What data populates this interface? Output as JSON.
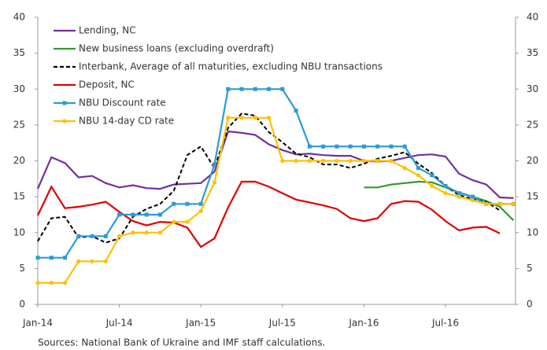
{
  "chart_data": {
    "type": "line",
    "note": "Sources: National Bank of Ukraine and IMF staff calculations.",
    "categories": [
      "Jan-14",
      null,
      null,
      null,
      null,
      null,
      "Jul-14",
      null,
      null,
      null,
      null,
      null,
      "Jan-15",
      null,
      null,
      null,
      null,
      null,
      "Jul-15",
      null,
      null,
      null,
      null,
      null,
      "Jan-16",
      null,
      null,
      null,
      null,
      null,
      "Jul-16",
      null,
      null,
      null,
      null,
      null
    ],
    "ylim": [
      0,
      40
    ],
    "yticks": [
      0,
      5,
      10,
      15,
      20,
      25,
      30,
      35,
      40
    ],
    "y2lim": [
      0,
      40
    ],
    "y2ticks": [
      0,
      5,
      10,
      15,
      20,
      25,
      30,
      35,
      40
    ],
    "legend": "upper left",
    "grid": false,
    "series": [
      {
        "name": "Lending, NC",
        "color": "#7030a0",
        "linestyle": "solid",
        "values": [
          16.1,
          20.5,
          19.7,
          17.7,
          17.9,
          16.9,
          16.3,
          16.6,
          16.2,
          16.1,
          16.7,
          16.8,
          16.9,
          18.5,
          24.1,
          23.9,
          23.6,
          22.3,
          21.5,
          20.9,
          21.0,
          20.8,
          20.7,
          20.7,
          20.0,
          19.9,
          20.0,
          20.4,
          20.8,
          20.9,
          20.6,
          18.2,
          17.3,
          16.7,
          14.9,
          14.8
        ]
      },
      {
        "name": "New business loans (excluding overdraft)",
        "color": "#339933",
        "linestyle": "solid",
        "values": [
          null,
          null,
          null,
          null,
          null,
          null,
          null,
          null,
          null,
          null,
          null,
          null,
          null,
          null,
          null,
          null,
          null,
          null,
          null,
          null,
          null,
          null,
          null,
          null,
          16.3,
          16.3,
          16.7,
          16.9,
          17.1,
          17.0,
          16.3,
          15.6,
          15.0,
          14.4,
          13.6,
          11.7
        ]
      },
      {
        "name": "Interbank, Average of all maturities, excluding NBU transactions",
        "color": "#000000",
        "linestyle": "dashed",
        "values": [
          8.8,
          12.0,
          12.2,
          9.3,
          9.5,
          8.6,
          9.2,
          12.2,
          13.3,
          14.0,
          15.8,
          20.8,
          22.0,
          19.0,
          24.6,
          26.6,
          26.3,
          24.0,
          22.6,
          21.0,
          20.5,
          19.5,
          19.5,
          19.0,
          19.6,
          20.3,
          20.7,
          21.2,
          19.6,
          18.3,
          16.5,
          15.2,
          14.7,
          14.3,
          13.1,
          null
        ]
      },
      {
        "name": "Deposit, NC",
        "color": "#e00000",
        "linestyle": "solid",
        "values": [
          12.4,
          16.4,
          13.4,
          13.6,
          13.9,
          14.3,
          12.9,
          11.6,
          11.0,
          11.5,
          11.4,
          10.7,
          8.0,
          9.2,
          13.5,
          17.1,
          17.1,
          16.4,
          15.5,
          14.6,
          14.2,
          13.8,
          13.3,
          12.0,
          11.6,
          12.0,
          14.0,
          14.4,
          14.3,
          13.2,
          11.6,
          10.3,
          10.7,
          10.8,
          9.9,
          null
        ]
      },
      {
        "name": "NBU Discount rate",
        "color": "#2b9bd8",
        "linestyle": "solid",
        "marker": "square",
        "values": [
          6.5,
          6.5,
          6.5,
          9.5,
          9.5,
          9.5,
          12.5,
          12.5,
          12.5,
          12.5,
          14,
          14,
          14,
          19.5,
          30,
          30,
          30,
          30,
          30,
          27,
          22,
          22,
          22,
          22,
          22,
          22,
          22,
          22,
          19,
          18,
          16.5,
          15.5,
          15,
          14,
          14,
          14
        ]
      },
      {
        "name": "NBU 14-day CD rate",
        "color": "#ffc000",
        "linestyle": "solid",
        "marker": "circle",
        "values": [
          3,
          3,
          3,
          6,
          6,
          6,
          9.5,
          10,
          10,
          10,
          11.5,
          11.5,
          13,
          17,
          26,
          26,
          26,
          26,
          20,
          20,
          20,
          20,
          20,
          20,
          20,
          20,
          20,
          19,
          18,
          16.5,
          15.5,
          15,
          14.5,
          14,
          14,
          14
        ]
      }
    ]
  }
}
